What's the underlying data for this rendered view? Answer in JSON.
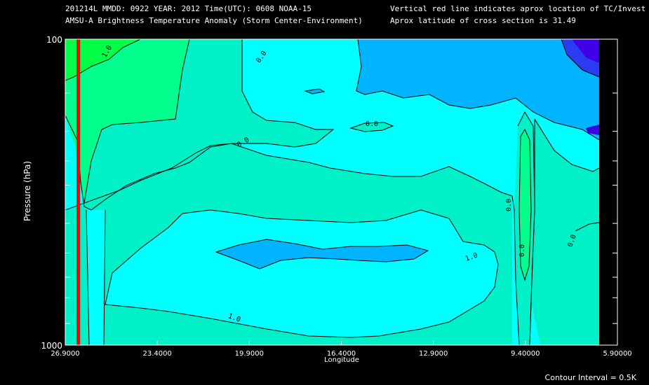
{
  "header": {
    "line1_left": "201214L  MMDD: 0922 YEAR: 2012 Time(UTC): 0608 NOAA-15",
    "line2_left": "AMSU-A Brightness Temperature Anomaly (Storm Center-Environment)",
    "line1_right": "Vertical red line indicates aprox location of TC/Invest",
    "line2_right": "Aprox latitude of cross section is 31.49"
  },
  "footer": {
    "contour_interval": "Contour Interval = 0.5K"
  },
  "colors": {
    "background": "#000000",
    "tc_line": "#ff0000",
    "bin_neg1_5": "#3f00e6",
    "bin_neg1_0": "#2a3cf0",
    "bin_neg0_5": "#00b4ff",
    "bin_0_0": "#00ffff",
    "bin_0_5": "#00f0c8",
    "bin_1_0": "#00ff8c",
    "bin_1_5": "#00ff46"
  },
  "chart_data": {
    "type": "heatmap",
    "title": "AMSU-A Brightness Temperature Anomaly (Storm Center-Environment)",
    "xlabel": "Longitude",
    "ylabel": "Pressure (hPa)",
    "x_tick_labels": [
      "26.9000",
      "23.4000",
      "19.9000",
      "16.4000",
      "12.9000",
      "9.40000",
      "5.90000"
    ],
    "x_ticks": [
      26.9,
      23.4,
      19.9,
      16.4,
      12.9,
      9.4,
      5.9
    ],
    "xlim": [
      26.9,
      5.9
    ],
    "y_tick_labels": [
      "100",
      "1000"
    ],
    "ylim": [
      1000,
      100
    ],
    "y_scale": "log",
    "y_minor_ticks": [
      100,
      150,
      200,
      250,
      300,
      400,
      500,
      600,
      700,
      850,
      1000
    ],
    "tc_longitude": 26.4,
    "contour_labels": [
      "1.0",
      "0.0",
      "0.0",
      "0.0",
      "0.0",
      "1.0",
      "1.0",
      "0.0",
      "0.0"
    ],
    "anomaly_bins_K": [
      -1.5,
      -1.0,
      -0.5,
      0.0,
      0.5,
      1.0,
      1.5
    ],
    "grid": false
  }
}
